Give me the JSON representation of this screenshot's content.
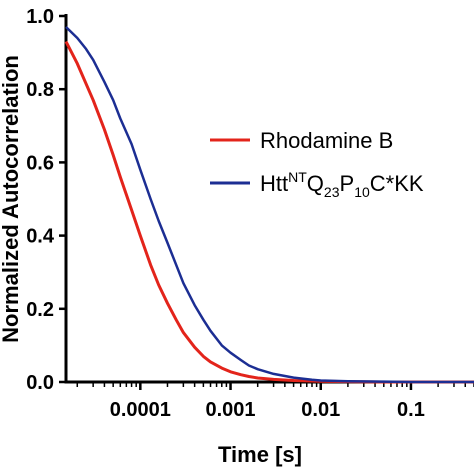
{
  "chart_data": {
    "type": "line",
    "title": "",
    "xlabel": "Time [s]",
    "ylabel": "Normalized Autocorrelation",
    "x_scale": "log",
    "xlim": [
      1.5e-05,
      0.5
    ],
    "ylim": [
      0,
      1.0
    ],
    "x_ticks": [
      {
        "value": 0.0001,
        "label": "0.0001"
      },
      {
        "value": 0.001,
        "label": "0.001"
      },
      {
        "value": 0.01,
        "label": "0.01"
      },
      {
        "value": 0.1,
        "label": "0.1"
      }
    ],
    "y_ticks": [
      {
        "value": 0.0,
        "label": "0.0"
      },
      {
        "value": 0.2,
        "label": "0.2"
      },
      {
        "value": 0.4,
        "label": "0.4"
      },
      {
        "value": 0.6,
        "label": "0.6"
      },
      {
        "value": 0.8,
        "label": "0.8"
      },
      {
        "value": 1.0,
        "label": "1.0"
      }
    ],
    "grid": false,
    "legend_position": "right",
    "series": [
      {
        "name": "Rhodamine B",
        "legend": {
          "base": "Rhodamine B"
        },
        "color": "#e3241b",
        "x": [
          1.5e-05,
          2e-05,
          3e-05,
          4e-05,
          5e-05,
          6e-05,
          8e-05,
          0.0001,
          0.00013,
          0.00016,
          0.0002,
          0.00025,
          0.0003,
          0.0004,
          0.0005,
          0.0006,
          0.0008,
          0.001,
          0.0013,
          0.0016,
          0.002,
          0.003,
          0.005,
          0.01,
          0.02,
          0.05,
          0.1,
          0.5
        ],
        "y": [
          0.93,
          0.87,
          0.77,
          0.69,
          0.62,
          0.56,
          0.47,
          0.4,
          0.32,
          0.265,
          0.215,
          0.17,
          0.135,
          0.095,
          0.07,
          0.055,
          0.038,
          0.028,
          0.02,
          0.015,
          0.011,
          0.007,
          0.004,
          0.002,
          0.001,
          0.0,
          0.0,
          0.0
        ]
      },
      {
        "name": "HttNTQ23P10C*KK",
        "legend": {
          "base": "Htt",
          "sup": "NT",
          "q": "Q",
          "sub1": "23",
          "p": "P",
          "sub2": "10",
          "tail": "C*KK"
        },
        "color": "#1c2e93",
        "x": [
          1.5e-05,
          2e-05,
          2.5e-05,
          3e-05,
          4e-05,
          5e-05,
          6e-05,
          8e-05,
          0.0001,
          0.00013,
          0.00016,
          0.0002,
          0.00025,
          0.0003,
          0.0004,
          0.0005,
          0.0006,
          0.0008,
          0.001,
          0.0013,
          0.0016,
          0.002,
          0.003,
          0.005,
          0.008,
          0.01,
          0.02,
          0.05,
          0.1,
          0.5
        ],
        "y": [
          0.97,
          0.94,
          0.91,
          0.88,
          0.82,
          0.77,
          0.72,
          0.65,
          0.58,
          0.5,
          0.44,
          0.38,
          0.32,
          0.27,
          0.21,
          0.17,
          0.14,
          0.1,
          0.08,
          0.06,
          0.045,
          0.035,
          0.022,
          0.012,
          0.006,
          0.004,
          0.002,
          0.001,
          0.0,
          0.0
        ]
      }
    ]
  }
}
